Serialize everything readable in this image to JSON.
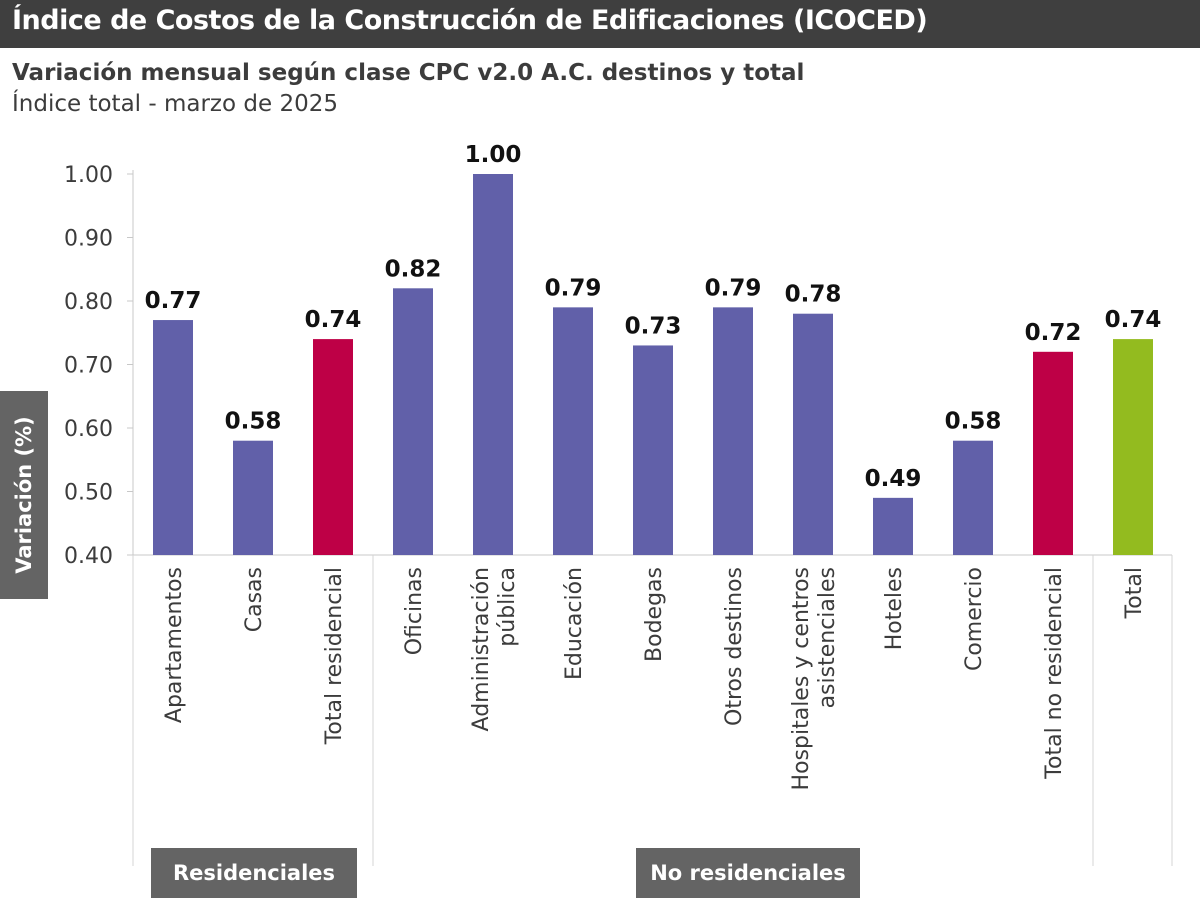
{
  "header": {
    "title": "Índice de Costos de la Construcción de Edificaciones (ICOCED)",
    "subtitle": "Variación mensual según clase CPC v2.0 A.C. destinos y total",
    "subtitle2": "Índice total - marzo de 2025"
  },
  "chart_data": {
    "type": "bar",
    "ylabel": "Variación (%)",
    "ylim": [
      0.4,
      1.0
    ],
    "yticks": [
      "0.40",
      "0.50",
      "0.60",
      "0.70",
      "0.80",
      "0.90",
      "1.00"
    ],
    "categories": [
      [
        "Apartamentos"
      ],
      [
        "Casas"
      ],
      [
        "Total residencial"
      ],
      [
        "Oficinas"
      ],
      [
        "Administración",
        "pública"
      ],
      [
        "Educación"
      ],
      [
        "Bodegas"
      ],
      [
        "Otros destinos"
      ],
      [
        "Hospitales y centros",
        "asistenciales"
      ],
      [
        "Hoteles"
      ],
      [
        "Comercio"
      ],
      [
        "Total no residencial"
      ],
      [
        "Total"
      ]
    ],
    "values": [
      0.77,
      0.58,
      0.74,
      0.82,
      1.0,
      0.79,
      0.73,
      0.79,
      0.78,
      0.49,
      0.58,
      0.72,
      0.74
    ],
    "value_labels": [
      "0.77",
      "0.58",
      "0.74",
      "0.82",
      "1.00",
      "0.79",
      "0.73",
      "0.79",
      "0.78",
      "0.49",
      "0.58",
      "0.72",
      "0.74"
    ],
    "bar_kinds": [
      "dest",
      "dest",
      "subtotal",
      "dest",
      "dest",
      "dest",
      "dest",
      "dest",
      "dest",
      "dest",
      "dest",
      "subtotal",
      "total"
    ],
    "colors": {
      "dest": "#6160a9",
      "subtotal": "#be0046",
      "total": "#93bb1f"
    },
    "groups": [
      {
        "name": "Residenciales",
        "first": 0,
        "last": 2
      },
      {
        "name": "No residenciales",
        "first": 3,
        "last": 11
      }
    ]
  }
}
